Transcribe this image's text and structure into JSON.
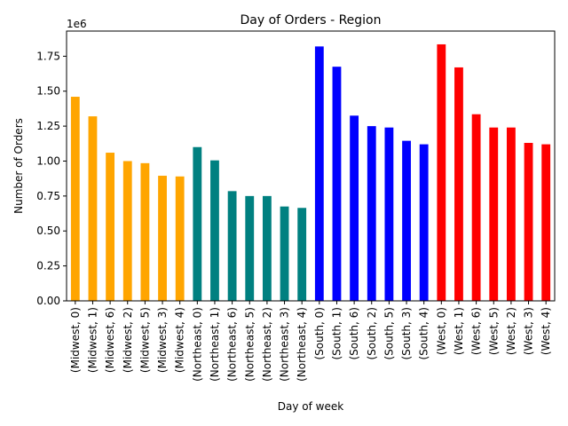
{
  "chart_data": {
    "type": "bar",
    "title": "Day of Orders - Region",
    "xlabel": "Day of week",
    "ylabel": "Number of Orders",
    "y_multiplier_label": "1e6",
    "ylim": [
      0,
      1930000
    ],
    "yticks": [
      0,
      250000,
      500000,
      750000,
      1000000,
      1250000,
      1500000,
      1750000
    ],
    "ytick_labels": [
      "0.00",
      "0.25",
      "0.50",
      "0.75",
      "1.00",
      "1.25",
      "1.50",
      "1.75"
    ],
    "grid": false,
    "legend": "none",
    "categories": [
      "(Midwest, 0)",
      "(Midwest, 1)",
      "(Midwest, 6)",
      "(Midwest, 2)",
      "(Midwest, 5)",
      "(Midwest, 3)",
      "(Midwest, 4)",
      "(Northeast, 0)",
      "(Northeast, 1)",
      "(Northeast, 6)",
      "(Northeast, 5)",
      "(Northeast, 2)",
      "(Northeast, 3)",
      "(Northeast, 4)",
      "(South, 0)",
      "(South, 1)",
      "(South, 6)",
      "(South, 2)",
      "(South, 5)",
      "(South, 3)",
      "(South, 4)",
      "(West, 0)",
      "(West, 1)",
      "(West, 6)",
      "(West, 5)",
      "(West, 2)",
      "(West, 3)",
      "(West, 4)"
    ],
    "values": [
      1460000,
      1320000,
      1060000,
      1000000,
      985000,
      895000,
      890000,
      1100000,
      1005000,
      785000,
      750000,
      750000,
      675000,
      665000,
      1820000,
      1675000,
      1325000,
      1250000,
      1240000,
      1145000,
      1120000,
      1835000,
      1670000,
      1335000,
      1240000,
      1240000,
      1130000,
      1120000
    ],
    "bar_colors": [
      "#FFA500",
      "#FFA500",
      "#FFA500",
      "#FFA500",
      "#FFA500",
      "#FFA500",
      "#FFA500",
      "#008080",
      "#008080",
      "#008080",
      "#008080",
      "#008080",
      "#008080",
      "#008080",
      "#0000FF",
      "#0000FF",
      "#0000FF",
      "#0000FF",
      "#0000FF",
      "#0000FF",
      "#0000FF",
      "#FF0000",
      "#FF0000",
      "#FF0000",
      "#FF0000",
      "#FF0000",
      "#FF0000",
      "#FF0000"
    ]
  }
}
